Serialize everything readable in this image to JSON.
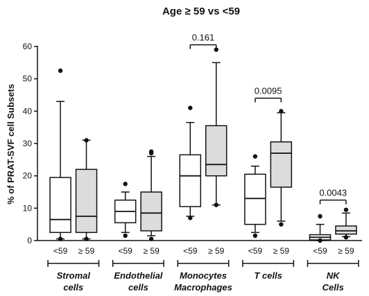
{
  "chart_data": {
    "type": "box",
    "title": "Age ≥ 59 vs <59",
    "ylabel": "% of PRAT-SVF cell Subsets",
    "ylim": [
      0,
      60
    ],
    "yticks": [
      "0",
      "10",
      "20",
      "30",
      "40",
      "50",
      "60"
    ],
    "grid": false,
    "groups": [
      {
        "label_lines": [
          "Stromal",
          "cells"
        ],
        "boxes": [
          {
            "category": "<59",
            "fill": "#ffffff",
            "whisker_low": 0.5,
            "q1": 2.5,
            "median": 6.5,
            "q3": 19.5,
            "whisker_high": 43,
            "outliers": [
              52.5,
              0.5
            ]
          },
          {
            "category": "≥ 59",
            "fill": "#dcdcdc",
            "whisker_low": 0.5,
            "q1": 2.5,
            "median": 7.5,
            "q3": 22,
            "whisker_high": 31,
            "outliers": [
              31,
              0.5
            ]
          }
        ]
      },
      {
        "label_lines": [
          "Endothelial",
          "cells"
        ],
        "boxes": [
          {
            "category": "<59",
            "fill": "#ffffff",
            "whisker_low": 2.5,
            "q1": 5.5,
            "median": 9,
            "q3": 12.5,
            "whisker_high": 15,
            "outliers": [
              17.5,
              1.5
            ]
          },
          {
            "category": "≥ 59",
            "fill": "#dcdcdc",
            "whisker_low": 1.5,
            "q1": 3,
            "median": 8.5,
            "q3": 15,
            "whisker_high": 26,
            "outliers": [
              27.5,
              27,
              0.5
            ]
          }
        ]
      },
      {
        "label_lines": [
          "Monocytes",
          "Macrophages"
        ],
        "boxes": [
          {
            "category": "<59",
            "fill": "#ffffff",
            "whisker_low": 7.5,
            "q1": 10.5,
            "median": 20,
            "q3": 26.5,
            "whisker_high": 36.5,
            "outliers": [
              41,
              7
            ]
          },
          {
            "category": "≥ 59",
            "fill": "#dcdcdc",
            "whisker_low": 11,
            "q1": 20,
            "median": 23.5,
            "q3": 35.5,
            "whisker_high": 55,
            "outliers": [
              59,
              11
            ]
          }
        ]
      },
      {
        "label_lines": [
          "T cells"
        ],
        "boxes": [
          {
            "category": "<59",
            "fill": "#ffffff",
            "whisker_low": 2.5,
            "q1": 5,
            "median": 13,
            "q3": 20.5,
            "whisker_high": 23,
            "outliers": [
              26,
              1.5
            ]
          },
          {
            "category": "≥ 59",
            "fill": "#dcdcdc",
            "whisker_low": 6,
            "q1": 16.5,
            "median": 27,
            "q3": 30.5,
            "whisker_high": 39.5,
            "outliers": [
              40,
              5
            ]
          }
        ]
      },
      {
        "label_lines": [
          "NK",
          "Cells"
        ],
        "boxes": [
          {
            "category": "<59",
            "fill": "#ffffff",
            "whisker_low": 0,
            "q1": 0.2,
            "median": 1,
            "q3": 1.8,
            "whisker_high": 5,
            "outliers": [
              7.5,
              0
            ]
          },
          {
            "category": "≥ 59",
            "fill": "#dcdcdc",
            "whisker_low": 1.2,
            "q1": 2,
            "median": 3,
            "q3": 4.5,
            "whisker_high": 8.5,
            "outliers": [
              9.5,
              1
            ]
          }
        ]
      }
    ],
    "comparisons": [
      {
        "group_index": 2,
        "p_value": "0.161",
        "bracket_y": 60.5
      },
      {
        "group_index": 3,
        "p_value": "0.0095",
        "bracket_y": 44
      },
      {
        "group_index": 4,
        "p_value": "0.0043",
        "bracket_y": 12.5
      }
    ]
  }
}
